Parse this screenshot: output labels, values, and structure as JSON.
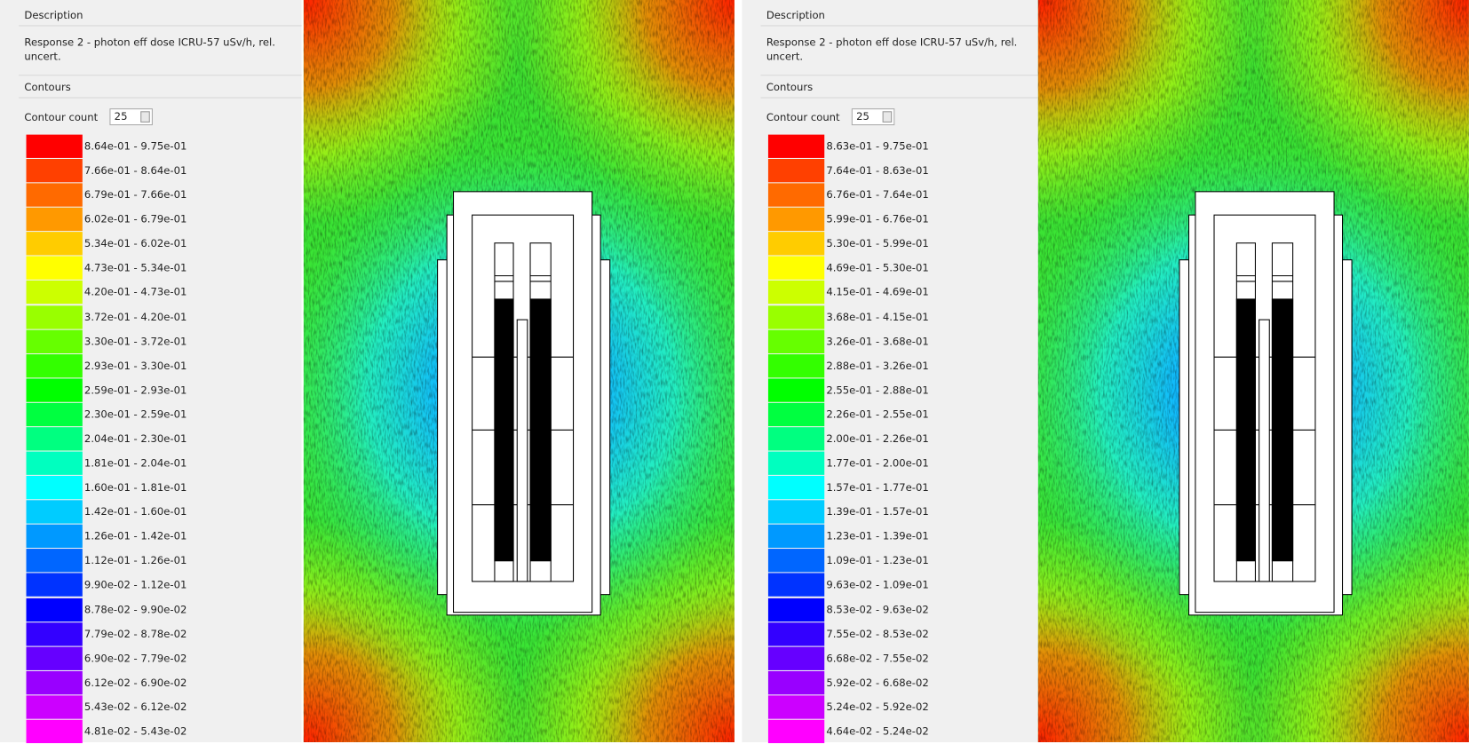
{
  "legend_colors": [
    "#ff0000",
    "#ff4000",
    "#ff6a00",
    "#ff9900",
    "#ffcc00",
    "#ffff00",
    "#ccff00",
    "#99ff00",
    "#66ff00",
    "#33ff00",
    "#00ff00",
    "#00ff40",
    "#00ff80",
    "#00ffbf",
    "#00ffff",
    "#00ccff",
    "#0099ff",
    "#0066ff",
    "#0033ff",
    "#0000ff",
    "#3300ff",
    "#6600ff",
    "#9900ff",
    "#cc00ff",
    "#ff00ff"
  ],
  "panels": [
    {
      "description_label": "Description",
      "description": "Response 2 - photon eff dose ICRU-57 uSv/h, rel. uncert.",
      "contours_label": "Contours",
      "contour_count_label": "Contour count",
      "contour_count": "25",
      "legend": [
        "8.64e-01 - 9.75e-01",
        "7.66e-01 - 8.64e-01",
        "6.79e-01 - 7.66e-01",
        "6.02e-01 - 6.79e-01",
        "5.34e-01 - 6.02e-01",
        "4.73e-01 - 5.34e-01",
        "4.20e-01 - 4.73e-01",
        "3.72e-01 - 4.20e-01",
        "3.30e-01 - 3.72e-01",
        "2.93e-01 - 3.30e-01",
        "2.59e-01 - 2.93e-01",
        "2.30e-01 - 2.59e-01",
        "2.04e-01 - 2.30e-01",
        "1.81e-01 - 2.04e-01",
        "1.60e-01 - 1.81e-01",
        "1.42e-01 - 1.60e-01",
        "1.26e-01 - 1.42e-01",
        "1.12e-01 - 1.26e-01",
        "9.90e-02 - 1.12e-01",
        "8.78e-02 - 9.90e-02",
        "7.79e-02 - 8.78e-02",
        "6.90e-02 - 7.79e-02",
        "6.12e-02 - 6.90e-02",
        "5.43e-02 - 6.12e-02",
        "4.81e-02 - 5.43e-02"
      ]
    },
    {
      "description_label": "Description",
      "description": "Response 2 - photon eff dose ICRU-57 uSv/h, rel. uncert.",
      "contours_label": "Contours",
      "contour_count_label": "Contour count",
      "contour_count": "25",
      "legend": [
        "8.63e-01 - 9.75e-01",
        "7.64e-01 - 8.63e-01",
        "6.76e-01 - 7.64e-01",
        "5.99e-01 - 6.76e-01",
        "5.30e-01 - 5.99e-01",
        "4.69e-01 - 5.30e-01",
        "4.15e-01 - 4.69e-01",
        "3.68e-01 - 4.15e-01",
        "3.26e-01 - 3.68e-01",
        "2.88e-01 - 3.26e-01",
        "2.55e-01 - 2.88e-01",
        "2.26e-01 - 2.55e-01",
        "2.00e-01 - 2.26e-01",
        "1.77e-01 - 2.00e-01",
        "1.57e-01 - 1.77e-01",
        "1.39e-01 - 1.57e-01",
        "1.23e-01 - 1.39e-01",
        "1.09e-01 - 1.23e-01",
        "9.63e-02 - 1.09e-01",
        "8.53e-02 - 9.63e-02",
        "7.55e-02 - 8.53e-02",
        "6.68e-02 - 7.55e-02",
        "5.92e-02 - 6.68e-02",
        "5.24e-02 - 5.92e-02",
        "4.64e-02 - 5.24e-02"
      ]
    }
  ]
}
